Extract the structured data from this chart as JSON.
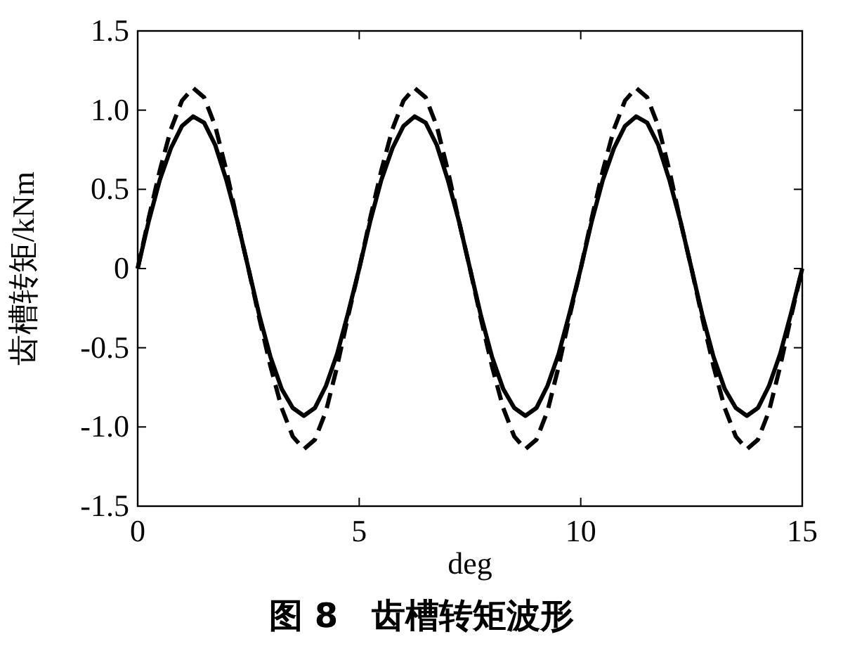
{
  "chart_data": {
    "type": "line",
    "xlabel": "deg",
    "ylabel": "齿槽转矩/kNm",
    "annotations": [
      "图 8　齿槽转矩波形"
    ],
    "xlim": [
      0,
      15
    ],
    "ylim": [
      -1.5,
      1.5
    ],
    "xticks": [
      0,
      5,
      10,
      15
    ],
    "yticks": [
      {
        "value": -1.5,
        "label": "-1.5"
      },
      {
        "value": -1,
        "label": "-1.0"
      },
      {
        "value": -0.5,
        "label": "-0.5"
      },
      0,
      {
        "value": 0.5,
        "label": "0.5"
      },
      {
        "value": 1,
        "label": "1.0"
      },
      {
        "value": 1.5,
        "label": "1.5"
      }
    ],
    "grid": false,
    "marker": "none",
    "x": [
      0,
      0.25,
      0.5,
      0.75,
      1,
      1.25,
      1.5,
      1.75,
      2,
      2.25,
      2.5,
      2.75,
      3,
      3.25,
      3.5,
      3.75,
      4,
      4.25,
      4.5,
      4.75,
      5,
      5.25,
      5.5,
      5.75,
      6,
      6.25,
      6.5,
      6.75,
      7,
      7.25,
      7.5,
      7.75,
      8,
      8.25,
      8.5,
      8.75,
      9,
      9.25,
      9.5,
      9.75,
      10,
      10.25,
      10.5,
      10.75,
      11,
      11.25,
      11.5,
      11.75,
      12,
      12.25,
      12.5,
      12.75,
      13,
      13.25,
      13.5,
      13.75,
      14,
      14.25,
      14.5,
      14.75,
      15
    ],
    "series": [
      {
        "color": "#000000",
        "line_style": "solid",
        "values": [
          0,
          0.3,
          0.56,
          0.76,
          0.9,
          0.96,
          0.92,
          0.78,
          0.56,
          0.3,
          0,
          -0.3,
          -0.56,
          -0.76,
          -0.88,
          -0.93,
          -0.88,
          -0.74,
          -0.54,
          -0.28,
          0,
          0.3,
          0.56,
          0.76,
          0.9,
          0.96,
          0.92,
          0.78,
          0.56,
          0.3,
          0,
          -0.3,
          -0.56,
          -0.76,
          -0.88,
          -0.93,
          -0.88,
          -0.74,
          -0.54,
          -0.28,
          0,
          0.3,
          0.56,
          0.76,
          0.9,
          0.96,
          0.92,
          0.78,
          0.56,
          0.3,
          0,
          -0.3,
          -0.56,
          -0.76,
          -0.88,
          -0.93,
          -0.88,
          -0.74,
          -0.54,
          -0.28,
          0
        ]
      },
      {
        "color": "#000000",
        "line_style": "dashed",
        "values": [
          0,
          0.32,
          0.62,
          0.88,
          1.06,
          1.14,
          1.08,
          0.9,
          0.62,
          0.3,
          0,
          -0.32,
          -0.62,
          -0.88,
          -1.06,
          -1.14,
          -1.08,
          -0.9,
          -0.62,
          -0.3,
          0,
          0.32,
          0.62,
          0.88,
          1.06,
          1.14,
          1.08,
          0.9,
          0.62,
          0.3,
          0,
          -0.32,
          -0.62,
          -0.88,
          -1.06,
          -1.14,
          -1.08,
          -0.9,
          -0.62,
          -0.3,
          0,
          0.32,
          0.62,
          0.88,
          1.06,
          1.14,
          1.08,
          0.9,
          0.62,
          0.3,
          0,
          -0.32,
          -0.62,
          -0.88,
          -1.06,
          -1.14,
          -1.08,
          -0.9,
          -0.62,
          -0.3,
          0
        ]
      }
    ]
  }
}
